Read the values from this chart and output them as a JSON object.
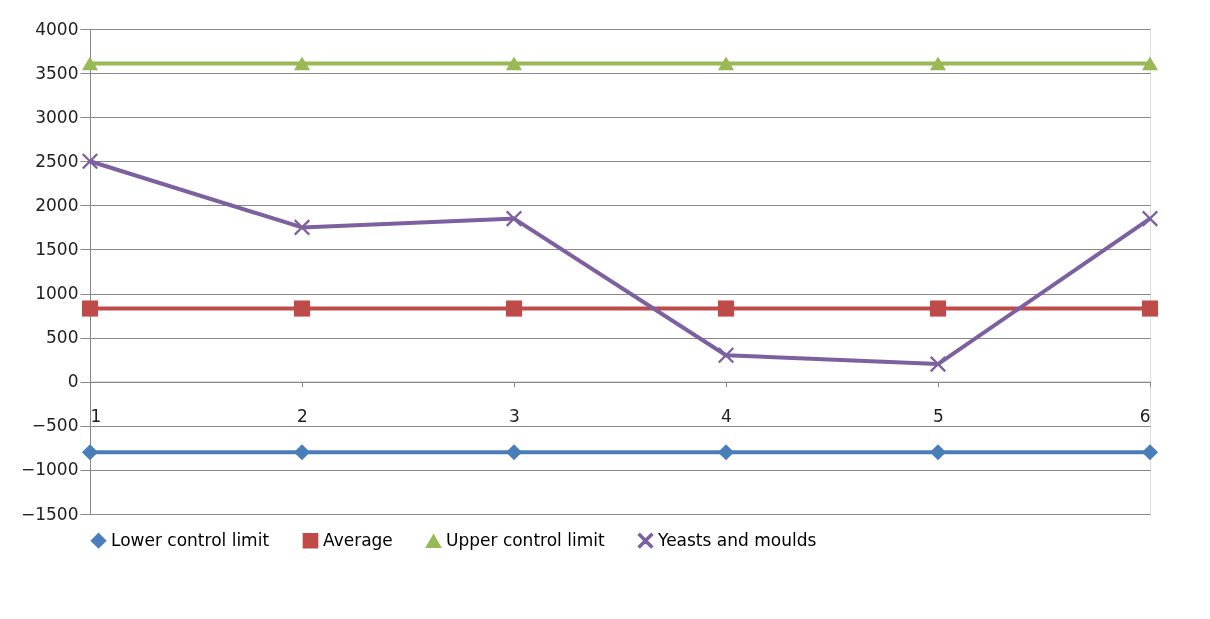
{
  "chart_data": {
    "type": "line",
    "categories": [
      "1",
      "2",
      "3",
      "4",
      "5",
      "6"
    ],
    "series": [
      {
        "name": "Lower control limit",
        "color": "#4a7ebb",
        "marker": "diamond",
        "values": [
          -800,
          -800,
          -800,
          -800,
          -800,
          -800
        ]
      },
      {
        "name": "Average",
        "color": "#be4b48",
        "marker": "square",
        "values": [
          830,
          830,
          830,
          830,
          830,
          830
        ]
      },
      {
        "name": "Upper control limit",
        "color": "#98b954",
        "marker": "triangle",
        "values": [
          3610,
          3610,
          3610,
          3610,
          3610,
          3610
        ]
      },
      {
        "name": "Yeasts and moulds",
        "color": "#7d60a0",
        "marker": "cross",
        "values": [
          2500,
          1750,
          1850,
          300,
          200,
          1850
        ]
      }
    ],
    "ylim": [
      -1500,
      4000
    ],
    "yticks": [
      -1500,
      -1000,
      -500,
      0,
      500,
      1000,
      1500,
      2000,
      2500,
      3000,
      3500,
      4000
    ],
    "grid": "y",
    "legend": "bottom",
    "line_style": "solid"
  }
}
